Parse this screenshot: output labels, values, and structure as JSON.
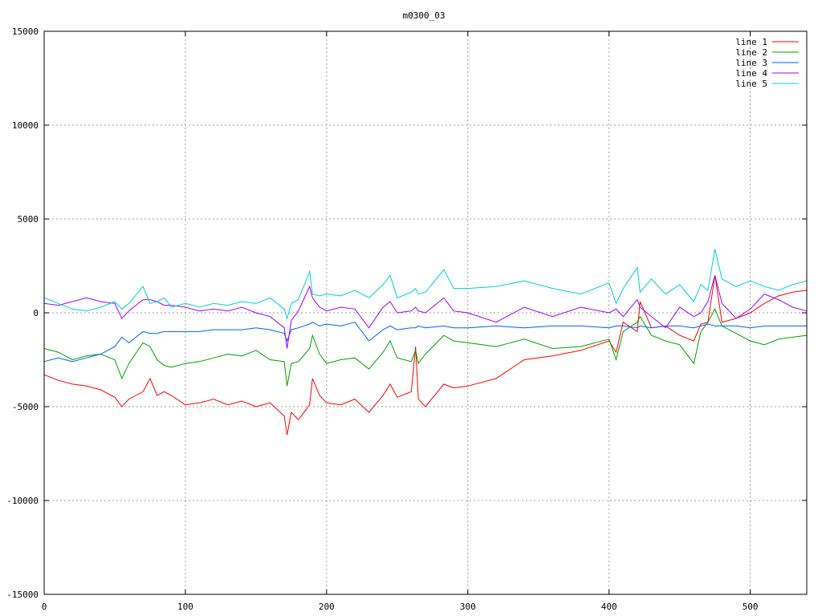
{
  "chart_data": {
    "type": "line",
    "title": "m0300_03",
    "xlabel": "",
    "ylabel": "",
    "xlim": [
      0,
      540
    ],
    "ylim": [
      -15000,
      15000
    ],
    "xticks": [
      0,
      100,
      200,
      300,
      400,
      500
    ],
    "xtick_labels": [
      "0",
      "100",
      "200",
      "300",
      "400",
      "500"
    ],
    "yticks": [
      -15000,
      -10000,
      -5000,
      0,
      5000,
      10000,
      15000
    ],
    "ytick_labels": [
      "-15000",
      "-10000",
      "-5000",
      "0",
      "5000",
      "10000",
      "15000"
    ],
    "grid": true,
    "legend_position": "top-right",
    "x": [
      0,
      10,
      20,
      30,
      40,
      50,
      55,
      60,
      70,
      75,
      80,
      85,
      90,
      100,
      110,
      120,
      130,
      140,
      150,
      160,
      170,
      172,
      175,
      180,
      188,
      190,
      195,
      200,
      210,
      220,
      230,
      240,
      245,
      250,
      260,
      263,
      265,
      270,
      283,
      290,
      300,
      320,
      340,
      360,
      380,
      400,
      405,
      410,
      420,
      422,
      430,
      440,
      450,
      460,
      465,
      470,
      475,
      480,
      490,
      500,
      510,
      520,
      530,
      540
    ],
    "series": [
      {
        "name": "line 1",
        "color": "#ff0000",
        "values": [
          -3300,
          -3600,
          -3800,
          -3900,
          -4100,
          -4500,
          -5000,
          -4600,
          -4200,
          -3500,
          -4400,
          -4200,
          -4400,
          -4900,
          -4800,
          -4600,
          -4900,
          -4700,
          -5000,
          -4800,
          -5500,
          -6500,
          -5300,
          -5700,
          -4900,
          -3500,
          -4400,
          -4800,
          -4900,
          -4600,
          -5300,
          -4400,
          -3800,
          -4500,
          -4200,
          -1800,
          -4600,
          -5000,
          -3800,
          -4000,
          -3900,
          -3500,
          -2500,
          -2300,
          -2000,
          -1500,
          -2100,
          -500,
          -1000,
          600,
          -800,
          -700,
          -1200,
          -1500,
          -600,
          -500,
          2000,
          -500,
          -300,
          0,
          500,
          900,
          1100,
          1200
        ]
      },
      {
        "name": "line 2",
        "color": "#00a000",
        "values": [
          -1900,
          -2100,
          -2500,
          -2300,
          -2200,
          -2500,
          -3500,
          -2700,
          -1600,
          -1800,
          -2500,
          -2800,
          -2900,
          -2700,
          -2600,
          -2400,
          -2200,
          -2300,
          -2000,
          -2500,
          -2600,
          -3900,
          -2700,
          -2600,
          -1900,
          -1200,
          -2200,
          -2700,
          -2500,
          -2400,
          -3000,
          -2100,
          -1500,
          -2400,
          -2600,
          -2000,
          -2700,
          -2200,
          -1200,
          -1500,
          -1600,
          -1800,
          -1400,
          -1900,
          -1800,
          -1400,
          -2500,
          -1000,
          -500,
          -200,
          -1200,
          -1500,
          -1700,
          -2700,
          -1000,
          -500,
          200,
          -700,
          -1100,
          -1500,
          -1700,
          -1400,
          -1300,
          -1200
        ]
      },
      {
        "name": "line 3",
        "color": "#0060ff",
        "values": [
          -2600,
          -2400,
          -2600,
          -2400,
          -2200,
          -1800,
          -1300,
          -1600,
          -1000,
          -1100,
          -1100,
          -1000,
          -1000,
          -1000,
          -1000,
          -900,
          -900,
          -900,
          -800,
          -900,
          -1100,
          -1500,
          -900,
          -800,
          -600,
          -500,
          -700,
          -600,
          -700,
          -500,
          -1500,
          -900,
          -700,
          -900,
          -800,
          -800,
          -700,
          -800,
          -700,
          -800,
          -800,
          -700,
          -800,
          -700,
          -700,
          -800,
          -700,
          -700,
          -800,
          -700,
          -800,
          -700,
          -700,
          -800,
          -700,
          -600,
          -700,
          -700,
          -700,
          -800,
          -700,
          -700,
          -700,
          -700
        ]
      },
      {
        "name": "line 4",
        "color": "#a000ff",
        "values": [
          500,
          400,
          600,
          800,
          600,
          500,
          -300,
          100,
          700,
          700,
          600,
          400,
          400,
          300,
          100,
          200,
          100,
          300,
          0,
          -200,
          -800,
          -1900,
          -400,
          100,
          1400,
          800,
          300,
          100,
          300,
          200,
          -800,
          300,
          600,
          0,
          100,
          300,
          100,
          0,
          800,
          100,
          0,
          -500,
          300,
          -200,
          300,
          0,
          200,
          -200,
          700,
          300,
          -200,
          -800,
          300,
          -200,
          0,
          600,
          2000,
          500,
          -300,
          200,
          1000,
          700,
          300,
          100
        ]
      },
      {
        "name": "line 5",
        "color": "#00d0d0",
        "values": [
          800,
          500,
          200,
          100,
          300,
          600,
          200,
          500,
          1400,
          500,
          600,
          800,
          300,
          500,
          300,
          500,
          400,
          600,
          500,
          800,
          200,
          -300,
          500,
          700,
          2200,
          1000,
          900,
          1000,
          900,
          1200,
          800,
          1500,
          2000,
          800,
          1100,
          1300,
          1000,
          1100,
          2300,
          1300,
          1300,
          1400,
          1700,
          1300,
          1000,
          1600,
          500,
          1300,
          2400,
          1100,
          1800,
          1000,
          1500,
          600,
          1500,
          1200,
          3400,
          1800,
          1400,
          1700,
          1400,
          1200,
          1500,
          1700
        ]
      }
    ]
  }
}
